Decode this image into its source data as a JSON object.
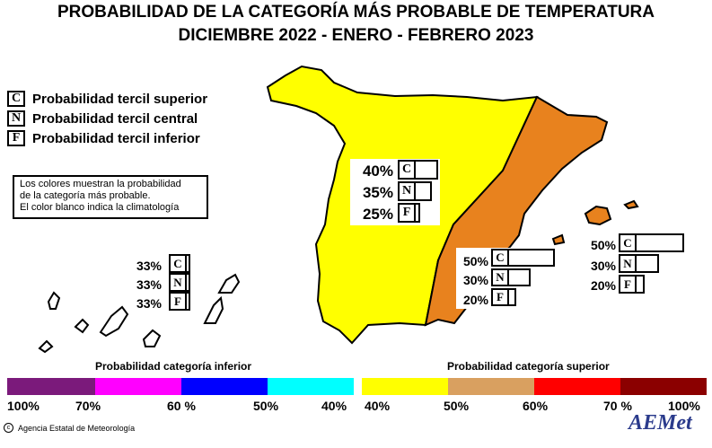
{
  "title": {
    "line1": "PROBABILIDAD DE LA CATEGORÍA MÁS PROBABLE DE  TEMPERATURA",
    "line2": "DICIEMBRE 2022 - ENERO - FEBRERO 2023"
  },
  "legend": [
    {
      "code": "C",
      "label": "Probabilidad  tercil superior"
    },
    {
      "code": "N",
      "label": "Probabilidad  tercil central"
    },
    {
      "code": "F",
      "label": "Probabilidad  tercil inferior"
    }
  ],
  "note": [
    "Los colores muestran la probabilidad",
    "de la categoría más probable.",
    "El color blanco indica la climatología"
  ],
  "regions": {
    "peninsula_west": {
      "color": "#ffff00",
      "C": "40%",
      "N": "35%",
      "F": "25%"
    },
    "mediterranean_east": {
      "color": "#e8821e",
      "C": "50%",
      "N": "30%",
      "F": "20%"
    },
    "baleares": {
      "color": "#e8821e",
      "C": "50%",
      "N": "30%",
      "F": "20%"
    },
    "canarias": {
      "color": "#ffffff",
      "C": "33%",
      "N": "33%",
      "F": "33%"
    }
  },
  "colorbar": {
    "inferior_title": "Probabilidad categoría inferior",
    "superior_title": "Probabilidad categoría superior",
    "inferior_colors": [
      "#7b1a7b",
      "#ff00ff",
      "#0000ff",
      "#00ffff"
    ],
    "superior_colors": [
      "#ffff00",
      "#d9a060",
      "#ff0000",
      "#8b0000"
    ],
    "inferior_ticks": [
      "100%",
      "70%",
      "60 %",
      "50%",
      "40%"
    ],
    "superior_ticks": [
      "40%",
      "50%",
      "60%",
      "70 %",
      "100%"
    ]
  },
  "credit": "Agencia Estatal de Meteorología",
  "logo": "AEMet"
}
